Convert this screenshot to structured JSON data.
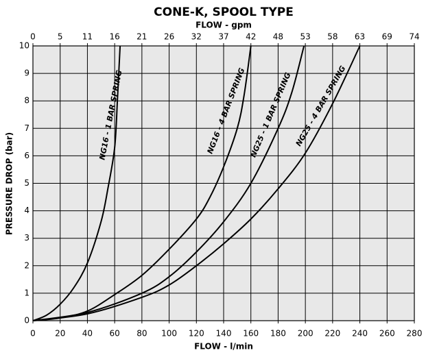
{
  "chart_data": {
    "type": "line",
    "title": "CONE-K, SPOOL TYPE",
    "x2_label": "FLOW - gpm",
    "xlabel": "FLOW - l/min",
    "ylabel": "PRESSURE DROP (bar)",
    "xlim": [
      0,
      280
    ],
    "xticks": [
      0,
      20,
      40,
      60,
      80,
      100,
      120,
      140,
      160,
      180,
      200,
      220,
      240,
      260,
      280
    ],
    "x2lim": [
      0,
      73.97
    ],
    "x2ticks": [
      0,
      {
        "value": 5.28,
        "label": "5"
      },
      {
        "value": 10.57,
        "label": "11"
      },
      {
        "value": 15.85,
        "label": "16"
      },
      {
        "value": 21.13,
        "label": "21"
      },
      {
        "value": 26.42,
        "label": "26"
      },
      {
        "value": 31.7,
        "label": "32"
      },
      {
        "value": 36.98,
        "label": "37"
      },
      {
        "value": 42.27,
        "label": "42"
      },
      {
        "value": 47.55,
        "label": "48"
      },
      {
        "value": 52.83,
        "label": "53"
      },
      {
        "value": 58.12,
        "label": "58"
      },
      {
        "value": 63.4,
        "label": "63"
      },
      {
        "value": 68.68,
        "label": "69"
      },
      {
        "value": 73.97,
        "label": "74"
      }
    ],
    "ylim": [
      0,
      10
    ],
    "yticks": [
      0,
      1,
      2,
      3,
      4,
      5,
      6,
      7,
      8,
      9,
      10
    ],
    "grid": true,
    "series": [
      {
        "name": "NG16 - 1 BAR SPRING",
        "color": "#000000",
        "x": [
          0,
          10,
          20,
          30,
          40,
          50,
          55,
          60,
          62,
          63,
          64
        ],
        "values": [
          0,
          0.2,
          0.6,
          1.2,
          2.1,
          3.6,
          4.8,
          6.3,
          8,
          9,
          10
        ]
      },
      {
        "name": "NG16 - 4 BAR SPRING",
        "color": "#000000",
        "x": [
          0,
          20,
          40,
          60,
          80,
          100,
          120,
          130,
          140,
          150,
          155,
          160
        ],
        "values": [
          0,
          0.1,
          0.35,
          0.95,
          1.65,
          2.6,
          3.7,
          4.5,
          5.6,
          7,
          8.2,
          10
        ]
      },
      {
        "name": "NG25 - 1 BAR SPRING",
        "color": "#000000",
        "x": [
          0,
          40,
          80,
          100,
          120,
          140,
          160,
          180,
          190,
          199
        ],
        "values": [
          0,
          0.3,
          1.0,
          1.6,
          2.5,
          3.6,
          5.0,
          7.0,
          8.3,
          10
        ]
      },
      {
        "name": "NG25 - 4 BAR SPRING",
        "color": "#000000",
        "x": [
          0,
          40,
          80,
          100,
          120,
          140,
          160,
          180,
          200,
          220,
          240
        ],
        "values": [
          0,
          0.25,
          0.85,
          1.3,
          2.0,
          2.8,
          3.7,
          4.8,
          6.1,
          7.9,
          10
        ]
      }
    ]
  }
}
